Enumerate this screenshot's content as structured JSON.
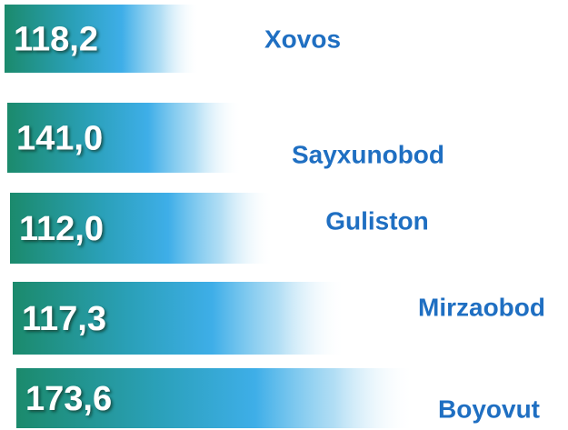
{
  "items": [
    {
      "value": "118,2",
      "name": "Xovos"
    },
    {
      "value": "141,0",
      "name": "Sayxunobod"
    },
    {
      "value": "112,0",
      "name": "Guliston"
    },
    {
      "value": "117,3",
      "name": "Mirzaobod"
    },
    {
      "value": "173,6",
      "name": "Boyovut"
    }
  ]
}
